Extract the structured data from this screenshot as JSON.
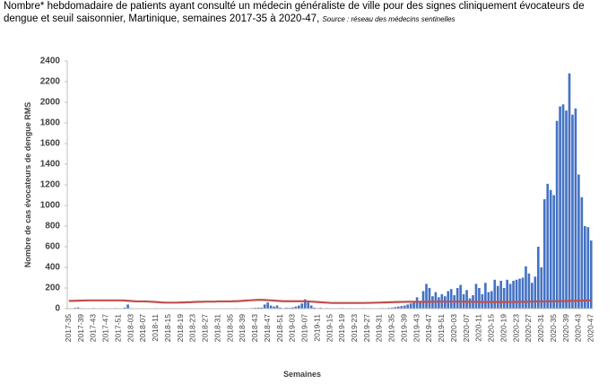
{
  "chart_data": {
    "type": "bar",
    "title": "Nombre* hebdomadaire de patients ayant consulté un médecin généraliste de ville pour des signes cliniquement évocateurs de dengue et seuil saisonnier, Martinique, semaines 2017-35 à 2020-47,",
    "source": "Source : réseau des médecins sentinelles",
    "y_label": "Nombre de cas évocateurs de dengue RMS",
    "x_label": "Semaines",
    "ylim": [
      0,
      2400
    ],
    "yticks": [
      0,
      200,
      400,
      600,
      800,
      1000,
      1200,
      1400,
      1600,
      1800,
      2000,
      2200,
      2400
    ],
    "grid": false,
    "categories": [
      "2017-35",
      null,
      null,
      null,
      "2017-39",
      null,
      null,
      null,
      "2017-43",
      null,
      null,
      null,
      "2017-47",
      null,
      null,
      null,
      "2017-51",
      null,
      null,
      null,
      "2018-03",
      null,
      null,
      null,
      "2018-07",
      null,
      null,
      null,
      "2018-11",
      null,
      null,
      null,
      "2018-15",
      null,
      null,
      null,
      "2018-19",
      null,
      null,
      null,
      "2018-23",
      null,
      null,
      null,
      "2018-27",
      null,
      null,
      null,
      "2018-31",
      null,
      null,
      null,
      "2018-35",
      null,
      null,
      null,
      "2018-39",
      null,
      null,
      null,
      "2018-43",
      null,
      null,
      null,
      "2018-47",
      null,
      null,
      null,
      "2018-51",
      null,
      null,
      null,
      "2019-03",
      null,
      null,
      null,
      "2019-07",
      null,
      null,
      null,
      "2019-11",
      null,
      null,
      null,
      "2019-15",
      null,
      null,
      null,
      "2019-19",
      null,
      null,
      null,
      "2019-23",
      null,
      null,
      null,
      "2019-27",
      null,
      null,
      null,
      "2019-31",
      null,
      null,
      null,
      "2019-35",
      null,
      null,
      null,
      "2019-39",
      null,
      null,
      null,
      "2019-43",
      null,
      null,
      null,
      "2019-47",
      null,
      null,
      null,
      "2019-51",
      null,
      null,
      null,
      "2020-03",
      null,
      null,
      null,
      "2020-07",
      null,
      null,
      null,
      "2020-11",
      null,
      null,
      null,
      "2020-15",
      null,
      null,
      null,
      "2020-19",
      null,
      null,
      null,
      "2020-23",
      null,
      null,
      null,
      "2020-27",
      null,
      null,
      null,
      "2020-31",
      null,
      null,
      null,
      "2020-35",
      null,
      null,
      null,
      "2020-39",
      null,
      null,
      null,
      "2020-43",
      null,
      null,
      null,
      "2020-47"
    ],
    "series": [
      {
        "type": "bar",
        "color": "#4472c4",
        "values": [
          2,
          3,
          8,
          12,
          5,
          3,
          2,
          4,
          6,
          3,
          2,
          5,
          3,
          2,
          4,
          6,
          3,
          2,
          10,
          40,
          5,
          3,
          2,
          3,
          2,
          4,
          3,
          2,
          5,
          3,
          2,
          4,
          2,
          3,
          2,
          2,
          3,
          2,
          4,
          3,
          2,
          2,
          3,
          2,
          2,
          4,
          3,
          2,
          2,
          3,
          2,
          4,
          3,
          2,
          5,
          3,
          2,
          4,
          3,
          6,
          8,
          10,
          10,
          40,
          60,
          30,
          20,
          30,
          10,
          5,
          10,
          8,
          12,
          20,
          30,
          50,
          90,
          60,
          30,
          10,
          5,
          8,
          4,
          6,
          5,
          3,
          4,
          5,
          6,
          4,
          3,
          5,
          4,
          3,
          5,
          6,
          4,
          5,
          3,
          4,
          5,
          6,
          5,
          8,
          10,
          15,
          20,
          25,
          30,
          40,
          50,
          70,
          110,
          60,
          170,
          240,
          200,
          120,
          160,
          110,
          140,
          120,
          170,
          190,
          130,
          200,
          230,
          140,
          180,
          100,
          130,
          240,
          200,
          140,
          250,
          160,
          170,
          280,
          220,
          270,
          200,
          280,
          240,
          270,
          280,
          290,
          300,
          410,
          340,
          250,
          310,
          600,
          400,
          1060,
          1210,
          1150,
          1100,
          1820,
          1960,
          1980,
          1920,
          2280,
          1880,
          1940,
          1300,
          1080,
          800,
          790,
          660
        ]
      },
      {
        "type": "line",
        "color": "#c0504d",
        "values": [
          75,
          75,
          76,
          77,
          78,
          79,
          80,
          80,
          80,
          80,
          80,
          80,
          80,
          80,
          80,
          80,
          80,
          80,
          78,
          76,
          74,
          72,
          70,
          70,
          70,
          70,
          68,
          66,
          64,
          62,
          60,
          58,
          58,
          58,
          58,
          58,
          60,
          60,
          62,
          62,
          64,
          65,
          66,
          66,
          68,
          68,
          68,
          68,
          70,
          70,
          70,
          70,
          70,
          72,
          72,
          74,
          76,
          78,
          80,
          82,
          84,
          85,
          85,
          84,
          82,
          80,
          78,
          76,
          74,
          72,
          72,
          72,
          72,
          72,
          72,
          72,
          72,
          70,
          68,
          66,
          64,
          62,
          60,
          58,
          56,
          55,
          55,
          55,
          55,
          55,
          55,
          55,
          55,
          55,
          55,
          55,
          56,
          56,
          57,
          58,
          58,
          60,
          60,
          62,
          62,
          64,
          64,
          65,
          65,
          66,
          66,
          66,
          66,
          66,
          66,
          66,
          66,
          66,
          68,
          68,
          68,
          68,
          68,
          68,
          68,
          68,
          68,
          68,
          66,
          66,
          66,
          66,
          64,
          64,
          64,
          64,
          64,
          64,
          64,
          64,
          64,
          64,
          64,
          64,
          64,
          66,
          66,
          66,
          68,
          68,
          70,
          70,
          70,
          70,
          70,
          70,
          72,
          72,
          72,
          74,
          74,
          74,
          76,
          76,
          76,
          78,
          78,
          80,
          80
        ]
      }
    ]
  }
}
